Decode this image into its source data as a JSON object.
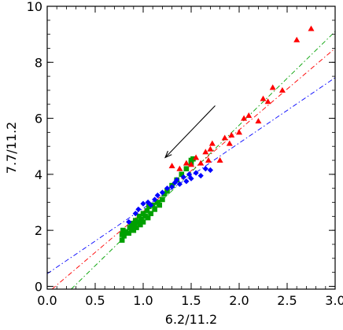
{
  "chart_data": {
    "type": "scatter",
    "xlabel": "6.2/11.2",
    "ylabel": "7.7/11.2",
    "xlim": [
      0.0,
      3.0
    ],
    "ylim": [
      -0.1,
      10.0
    ],
    "x_ticks": [
      "0.0",
      "0.5",
      "1.0",
      "1.5",
      "2.0",
      "2.5",
      "3.0"
    ],
    "x_tick_values": [
      0.0,
      0.5,
      1.0,
      1.5,
      2.0,
      2.5,
      3.0
    ],
    "y_ticks": [
      "0",
      "2",
      "4",
      "6",
      "8",
      "10"
    ],
    "y_tick_values": [
      0,
      2,
      4,
      6,
      8,
      10
    ],
    "grid": false,
    "series": [
      {
        "marker": "square",
        "color": "#00a000",
        "points": [
          [
            0.78,
            1.65
          ],
          [
            0.78,
            1.85
          ],
          [
            0.79,
            2.0
          ],
          [
            0.8,
            1.8
          ],
          [
            0.82,
            1.95
          ],
          [
            0.85,
            1.9
          ],
          [
            0.86,
            2.1
          ],
          [
            0.88,
            2.05
          ],
          [
            0.88,
            2.25
          ],
          [
            0.9,
            2.0
          ],
          [
            0.91,
            2.2
          ],
          [
            0.92,
            2.35
          ],
          [
            0.93,
            2.1
          ],
          [
            0.95,
            2.3
          ],
          [
            0.96,
            2.5
          ],
          [
            0.97,
            2.2
          ],
          [
            0.98,
            2.4
          ],
          [
            1.0,
            2.6
          ],
          [
            1.0,
            2.3
          ],
          [
            1.02,
            2.5
          ],
          [
            1.04,
            2.7
          ],
          [
            1.05,
            2.45
          ],
          [
            1.06,
            2.85
          ],
          [
            1.08,
            2.6
          ],
          [
            1.1,
            2.9
          ],
          [
            1.12,
            2.75
          ],
          [
            1.15,
            3.0
          ],
          [
            1.17,
            2.9
          ],
          [
            1.2,
            3.1
          ],
          [
            1.22,
            3.3
          ],
          [
            1.25,
            3.4
          ],
          [
            1.3,
            3.6
          ],
          [
            1.35,
            3.8
          ],
          [
            1.4,
            4.0
          ],
          [
            1.45,
            4.2
          ],
          [
            1.5,
            4.4
          ],
          [
            1.5,
            4.5
          ],
          [
            1.52,
            4.55
          ]
        ]
      },
      {
        "marker": "diamond",
        "color": "#0000ff",
        "points": [
          [
            0.85,
            2.3
          ],
          [
            0.92,
            2.6
          ],
          [
            0.95,
            2.75
          ],
          [
            1.0,
            2.95
          ],
          [
            1.05,
            3.0
          ],
          [
            1.08,
            2.9
          ],
          [
            1.12,
            3.1
          ],
          [
            1.15,
            3.25
          ],
          [
            1.2,
            3.35
          ],
          [
            1.25,
            3.5
          ],
          [
            1.3,
            3.55
          ],
          [
            1.33,
            3.7
          ],
          [
            1.35,
            3.8
          ],
          [
            1.38,
            3.65
          ],
          [
            1.42,
            3.9
          ],
          [
            1.45,
            3.75
          ],
          [
            1.48,
            4.0
          ],
          [
            1.5,
            3.85
          ],
          [
            1.55,
            4.05
          ],
          [
            1.6,
            3.95
          ],
          [
            1.65,
            4.2
          ],
          [
            1.7,
            4.15
          ]
        ]
      },
      {
        "marker": "triangle",
        "color": "#ff0000",
        "points": [
          [
            1.3,
            4.3
          ],
          [
            1.38,
            4.2
          ],
          [
            1.45,
            4.4
          ],
          [
            1.5,
            4.35
          ],
          [
            1.55,
            4.6
          ],
          [
            1.6,
            4.4
          ],
          [
            1.65,
            4.8
          ],
          [
            1.68,
            4.5
          ],
          [
            1.7,
            4.9
          ],
          [
            1.72,
            5.1
          ],
          [
            1.8,
            4.5
          ],
          [
            1.85,
            5.3
          ],
          [
            1.9,
            5.1
          ],
          [
            1.92,
            5.4
          ],
          [
            2.0,
            5.5
          ],
          [
            2.05,
            6.0
          ],
          [
            2.1,
            6.1
          ],
          [
            2.2,
            5.9
          ],
          [
            2.25,
            6.7
          ],
          [
            2.3,
            6.6
          ],
          [
            2.35,
            7.1
          ],
          [
            2.45,
            7.0
          ],
          [
            2.6,
            8.8
          ],
          [
            2.75,
            9.2
          ]
        ]
      }
    ],
    "fit_lines": [
      {
        "color": "#0000ff",
        "dash": "dash-dot",
        "from": [
          0.0,
          0.45
        ],
        "to": [
          3.0,
          7.45
        ]
      },
      {
        "color": "#ff0000",
        "dash": "dash-dot",
        "from": [
          0.05,
          -0.1
        ],
        "to": [
          3.0,
          8.5
        ]
      },
      {
        "color": "#00a000",
        "dash": "dash-dot",
        "from": [
          0.25,
          -0.1
        ],
        "to": [
          3.0,
          9.1
        ]
      }
    ],
    "annotation_arrow": {
      "from": [
        1.75,
        6.45
      ],
      "to": [
        1.23,
        4.6
      ],
      "color": "#000000"
    }
  }
}
